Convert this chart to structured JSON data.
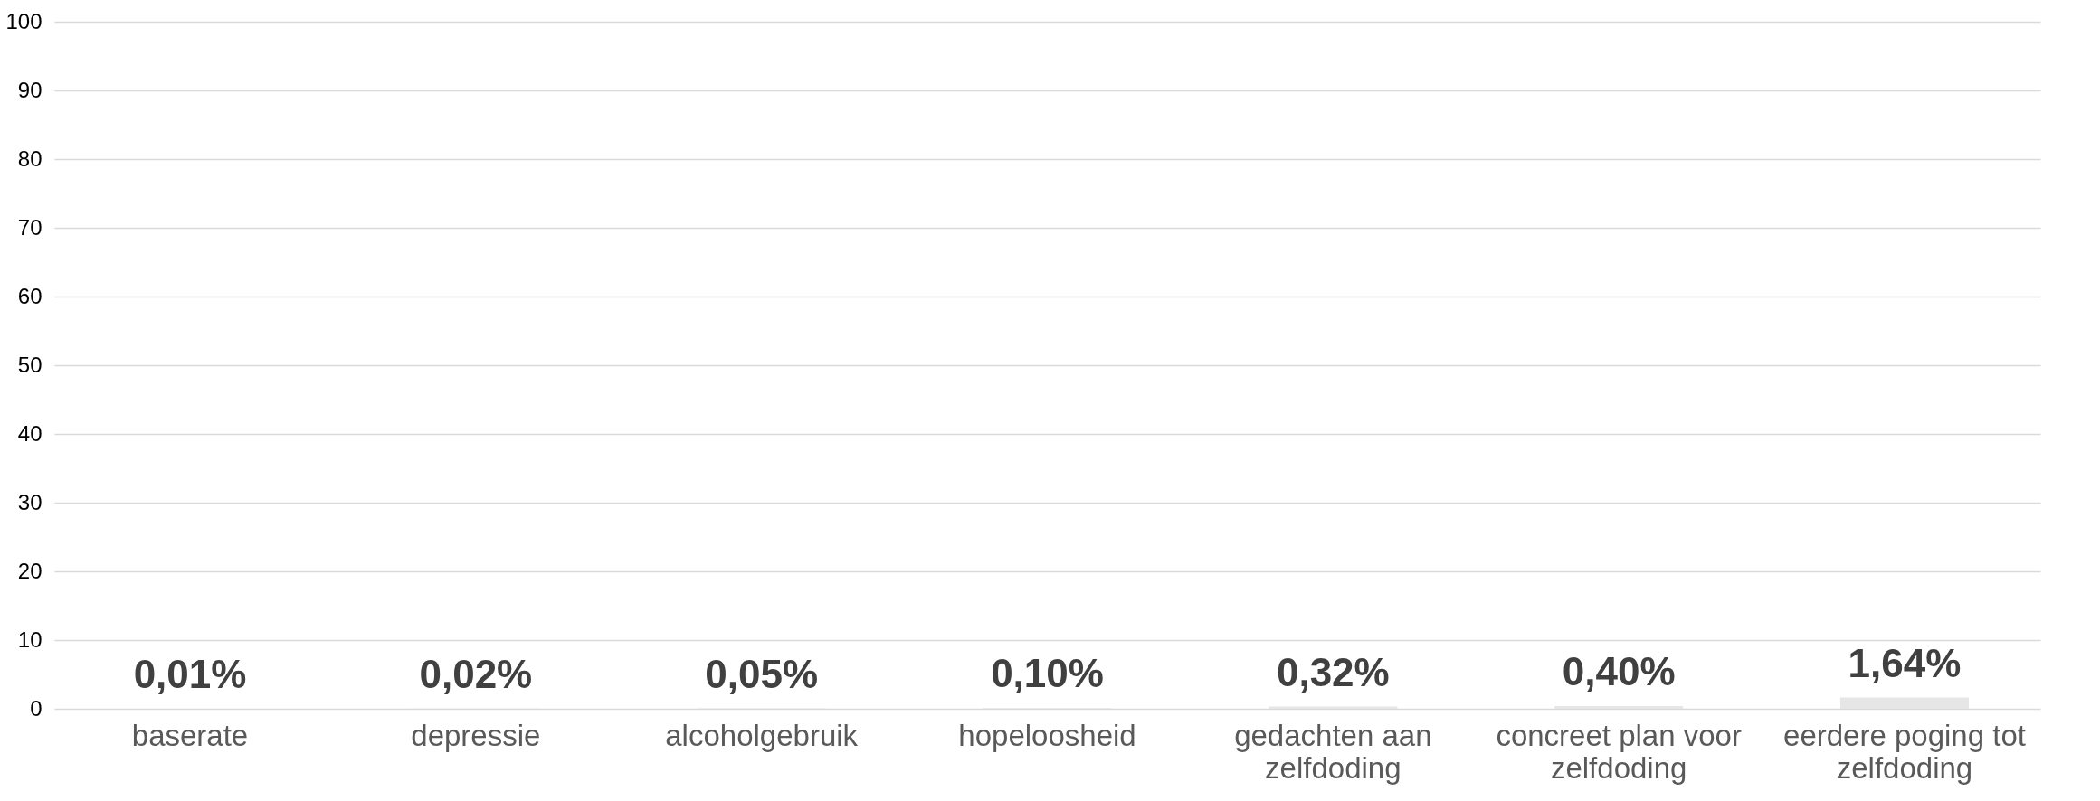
{
  "chart_data": {
    "type": "bar",
    "categories": [
      "baserate",
      "depressie",
      "alcoholgebruik",
      "hopeloosheid",
      "gedachten aan zelfdoding",
      "concreet plan voor zelfdoding",
      "eerdere poging tot zelfdoding"
    ],
    "values": [
      0.01,
      0.02,
      0.05,
      0.1,
      0.32,
      0.4,
      1.64
    ],
    "color": "#e7e6e6",
    "value_labels": [
      "0,01%",
      "0,02%",
      "0,05%",
      "0,10%",
      "0,32%",
      "0,40%",
      "1,64%"
    ],
    "ylim": [
      0,
      100
    ],
    "yticks": [
      0,
      10,
      20,
      30,
      40,
      50,
      60,
      70,
      80,
      90,
      100
    ],
    "grid": "y"
  }
}
